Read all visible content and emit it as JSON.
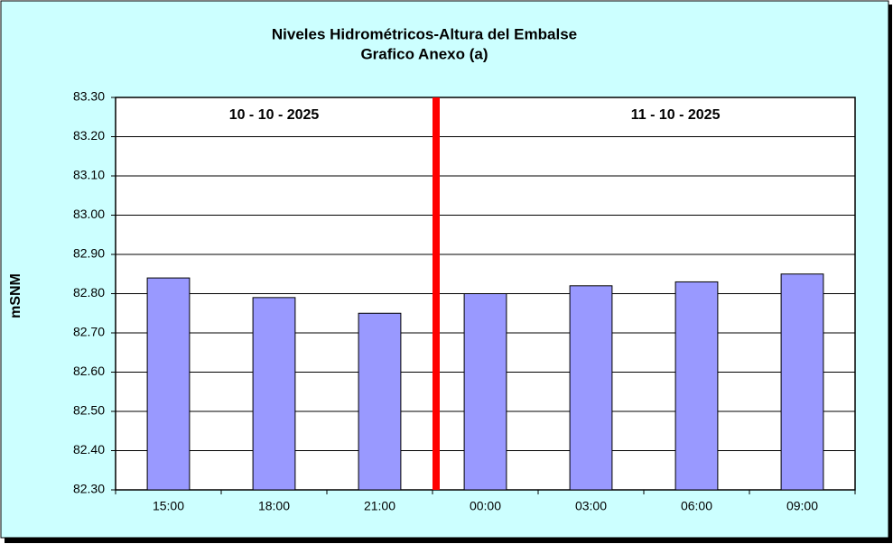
{
  "chart_data": {
    "type": "bar",
    "title": "Niveles Hidrométricos-Altura del Embalse",
    "subtitle": "Grafico Anexo (a)",
    "y_label": "mSNM",
    "annotations": [
      "10 - 10 - 2025",
      "11 - 10 - 2025"
    ],
    "categories": [
      "15:00",
      "18:00",
      "21:00",
      "00:00",
      "03:00",
      "06:00",
      "09:00"
    ],
    "values": [
      82.84,
      82.79,
      82.75,
      82.8,
      82.82,
      82.83,
      82.85
    ],
    "color": "#9999ff",
    "ylim": [
      82.3,
      83.3
    ],
    "yticks": [
      {
        "value": 82.3,
        "label": "82.30"
      },
      {
        "value": 82.4,
        "label": "82.40"
      },
      {
        "value": 82.5,
        "label": "82.50"
      },
      {
        "value": 82.6,
        "label": "82.60"
      },
      {
        "value": 82.7,
        "label": "82.70"
      },
      {
        "value": 82.8,
        "label": "82.80"
      },
      {
        "value": 82.9,
        "label": "82.90"
      },
      {
        "value": 83.0,
        "label": "83.00"
      },
      {
        "value": 83.1,
        "label": "83.10"
      },
      {
        "value": 83.2,
        "label": "83.20"
      },
      {
        "value": 83.3,
        "label": "83.30"
      }
    ],
    "grid": true
  }
}
